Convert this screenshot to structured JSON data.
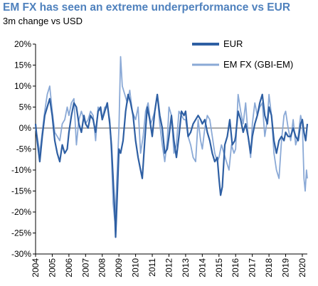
{
  "title": "EM FX has seen an extreme underperformance vs EUR",
  "subtitle": "3m change vs USD",
  "colors": {
    "eur": "#2e5fa3",
    "emfx": "#8aa9d6",
    "title": "#4f81bd",
    "zero_line": "#555555"
  },
  "chart_data": {
    "type": "line",
    "title": "EM FX has seen an extreme underperformance vs EUR",
    "subtitle": "3m change vs USD",
    "xlabel": "",
    "ylabel": "",
    "xlim": [
      2004,
      2020.3
    ],
    "ylim": [
      -30,
      20
    ],
    "y_ticks": [
      20,
      15,
      10,
      5,
      0,
      -5,
      -10,
      -15,
      -20,
      -25,
      -30
    ],
    "y_tick_labels": [
      "20%",
      "15%",
      "10%",
      "5%",
      "0%",
      "-5%",
      "-10%",
      "-15%",
      "-20%",
      "-25%",
      "-30%"
    ],
    "x_ticks": [
      "2004",
      "2005",
      "2006",
      "2007",
      "2008",
      "2009",
      "2010",
      "2011",
      "2012",
      "2013",
      "2014",
      "2015",
      "2016",
      "2017",
      "2018",
      "2019",
      "2020"
    ],
    "grid": false,
    "legend_position": "top-right",
    "series": [
      {
        "name": "EUR",
        "points": [
          [
            2004.0,
            1
          ],
          [
            2004.1,
            -3
          ],
          [
            2004.25,
            -8
          ],
          [
            2004.4,
            -2
          ],
          [
            2004.55,
            3
          ],
          [
            2004.7,
            5
          ],
          [
            2004.85,
            7
          ],
          [
            2005.0,
            3
          ],
          [
            2005.15,
            -3
          ],
          [
            2005.3,
            -6
          ],
          [
            2005.45,
            -8
          ],
          [
            2005.6,
            -4
          ],
          [
            2005.75,
            -6
          ],
          [
            2005.9,
            -5
          ],
          [
            2006.0,
            -1
          ],
          [
            2006.15,
            3
          ],
          [
            2006.3,
            6
          ],
          [
            2006.45,
            5
          ],
          [
            2006.6,
            1
          ],
          [
            2006.75,
            -1
          ],
          [
            2006.9,
            3
          ],
          [
            2007.0,
            1
          ],
          [
            2007.15,
            0
          ],
          [
            2007.3,
            3
          ],
          [
            2007.45,
            2
          ],
          [
            2007.6,
            -1
          ],
          [
            2007.75,
            4
          ],
          [
            2007.9,
            5
          ],
          [
            2008.0,
            2
          ],
          [
            2008.15,
            4
          ],
          [
            2008.3,
            6
          ],
          [
            2008.45,
            1
          ],
          [
            2008.55,
            -4
          ],
          [
            2008.65,
            -12
          ],
          [
            2008.75,
            -20
          ],
          [
            2008.8,
            -26
          ],
          [
            2008.9,
            -16
          ],
          [
            2009.0,
            -5
          ],
          [
            2009.1,
            -6
          ],
          [
            2009.25,
            -3
          ],
          [
            2009.4,
            4
          ],
          [
            2009.55,
            8
          ],
          [
            2009.7,
            6
          ],
          [
            2009.85,
            3
          ],
          [
            2010.0,
            -3
          ],
          [
            2010.15,
            -7
          ],
          [
            2010.3,
            -10
          ],
          [
            2010.4,
            -12
          ],
          [
            2010.55,
            -3
          ],
          [
            2010.7,
            5
          ],
          [
            2010.85,
            2
          ],
          [
            2011.0,
            -2
          ],
          [
            2011.15,
            4
          ],
          [
            2011.3,
            8
          ],
          [
            2011.45,
            3
          ],
          [
            2011.6,
            0
          ],
          [
            2011.75,
            -6
          ],
          [
            2011.9,
            -5
          ],
          [
            2012.0,
            -2
          ],
          [
            2012.15,
            3
          ],
          [
            2012.3,
            -3
          ],
          [
            2012.45,
            -7
          ],
          [
            2012.6,
            -2
          ],
          [
            2012.75,
            4
          ],
          [
            2012.9,
            3
          ],
          [
            2013.0,
            4
          ],
          [
            2013.15,
            -2
          ],
          [
            2013.3,
            -1
          ],
          [
            2013.45,
            1
          ],
          [
            2013.6,
            2
          ],
          [
            2013.75,
            3
          ],
          [
            2013.9,
            2
          ],
          [
            2014.0,
            1
          ],
          [
            2014.15,
            2
          ],
          [
            2014.3,
            -1
          ],
          [
            2014.45,
            -3
          ],
          [
            2014.6,
            -6
          ],
          [
            2014.75,
            -8
          ],
          [
            2014.9,
            -7
          ],
          [
            2015.0,
            -12
          ],
          [
            2015.1,
            -16
          ],
          [
            2015.2,
            -14
          ],
          [
            2015.35,
            -4
          ],
          [
            2015.5,
            -2
          ],
          [
            2015.65,
            2
          ],
          [
            2015.8,
            -4
          ],
          [
            2015.95,
            -3
          ],
          [
            2016.0,
            -2
          ],
          [
            2016.15,
            4
          ],
          [
            2016.3,
            2
          ],
          [
            2016.45,
            -1
          ],
          [
            2016.6,
            1
          ],
          [
            2016.75,
            -2
          ],
          [
            2016.9,
            -6
          ],
          [
            2017.0,
            -2
          ],
          [
            2017.15,
            1
          ],
          [
            2017.3,
            3
          ],
          [
            2017.45,
            6
          ],
          [
            2017.6,
            8
          ],
          [
            2017.75,
            3
          ],
          [
            2017.9,
            1
          ],
          [
            2018.0,
            5
          ],
          [
            2018.15,
            3
          ],
          [
            2018.3,
            -3
          ],
          [
            2018.45,
            -6
          ],
          [
            2018.6,
            -3
          ],
          [
            2018.75,
            -2
          ],
          [
            2018.9,
            -3
          ],
          [
            2019.0,
            -1
          ],
          [
            2019.15,
            -2
          ],
          [
            2019.3,
            -2
          ],
          [
            2019.45,
            0
          ],
          [
            2019.6,
            -2
          ],
          [
            2019.75,
            -3
          ],
          [
            2019.9,
            1
          ],
          [
            2020.0,
            2
          ],
          [
            2020.1,
            -1
          ],
          [
            2020.2,
            -3
          ],
          [
            2020.3,
            1
          ]
        ]
      },
      {
        "name": "EM FX (GBI-EM)",
        "points": [
          [
            2004.0,
            0
          ],
          [
            2004.1,
            -2
          ],
          [
            2004.25,
            -6
          ],
          [
            2004.4,
            -1
          ],
          [
            2004.55,
            4
          ],
          [
            2004.7,
            8
          ],
          [
            2004.85,
            10
          ],
          [
            2005.0,
            4
          ],
          [
            2005.15,
            -1
          ],
          [
            2005.3,
            -2
          ],
          [
            2005.45,
            -3
          ],
          [
            2005.6,
            1
          ],
          [
            2005.75,
            2
          ],
          [
            2005.9,
            5
          ],
          [
            2006.0,
            3
          ],
          [
            2006.15,
            6
          ],
          [
            2006.3,
            7
          ],
          [
            2006.45,
            -4
          ],
          [
            2006.6,
            2
          ],
          [
            2006.75,
            4
          ],
          [
            2006.9,
            2
          ],
          [
            2007.0,
            1
          ],
          [
            2007.15,
            2
          ],
          [
            2007.3,
            4
          ],
          [
            2007.45,
            3
          ],
          [
            2007.6,
            -3
          ],
          [
            2007.75,
            5
          ],
          [
            2007.9,
            4
          ],
          [
            2008.0,
            2
          ],
          [
            2008.15,
            5
          ],
          [
            2008.3,
            5
          ],
          [
            2008.45,
            2
          ],
          [
            2008.55,
            -6
          ],
          [
            2008.65,
            -18
          ],
          [
            2008.75,
            -22
          ],
          [
            2008.8,
            -19
          ],
          [
            2008.9,
            -10
          ],
          [
            2009.0,
            0
          ],
          [
            2009.1,
            17
          ],
          [
            2009.2,
            10
          ],
          [
            2009.35,
            8
          ],
          [
            2009.5,
            6
          ],
          [
            2009.65,
            9
          ],
          [
            2009.8,
            4
          ],
          [
            2010.0,
            2
          ],
          [
            2010.15,
            5
          ],
          [
            2010.3,
            -6
          ],
          [
            2010.45,
            -2
          ],
          [
            2010.6,
            4
          ],
          [
            2010.75,
            6
          ],
          [
            2010.9,
            1
          ],
          [
            2011.0,
            2
          ],
          [
            2011.15,
            4
          ],
          [
            2011.3,
            8
          ],
          [
            2011.45,
            1
          ],
          [
            2011.6,
            -4
          ],
          [
            2011.75,
            -8
          ],
          [
            2011.9,
            -3
          ],
          [
            2012.0,
            5
          ],
          [
            2012.15,
            3
          ],
          [
            2012.3,
            -6
          ],
          [
            2012.45,
            -4
          ],
          [
            2012.6,
            4
          ],
          [
            2012.75,
            3
          ],
          [
            2012.9,
            2
          ],
          [
            2013.0,
            2
          ],
          [
            2013.15,
            -2
          ],
          [
            2013.3,
            -4
          ],
          [
            2013.45,
            -7
          ],
          [
            2013.6,
            -8
          ],
          [
            2013.75,
            2
          ],
          [
            2013.9,
            -3
          ],
          [
            2014.0,
            -5
          ],
          [
            2014.15,
            0
          ],
          [
            2014.3,
            3
          ],
          [
            2014.45,
            2
          ],
          [
            2014.6,
            -2
          ],
          [
            2014.75,
            -6
          ],
          [
            2014.9,
            -8
          ],
          [
            2015.0,
            -7
          ],
          [
            2015.15,
            -4
          ],
          [
            2015.3,
            -6
          ],
          [
            2015.45,
            -8
          ],
          [
            2015.6,
            -10
          ],
          [
            2015.75,
            -4
          ],
          [
            2015.9,
            -6
          ],
          [
            2016.0,
            -5
          ],
          [
            2016.15,
            8
          ],
          [
            2016.3,
            4
          ],
          [
            2016.45,
            1
          ],
          [
            2016.6,
            6
          ],
          [
            2016.75,
            -2
          ],
          [
            2016.9,
            -7
          ],
          [
            2017.0,
            1
          ],
          [
            2017.15,
            6
          ],
          [
            2017.3,
            3
          ],
          [
            2017.45,
            5
          ],
          [
            2017.6,
            6
          ],
          [
            2017.75,
            -2
          ],
          [
            2017.9,
            2
          ],
          [
            2018.0,
            8
          ],
          [
            2018.15,
            3
          ],
          [
            2018.3,
            -6
          ],
          [
            2018.45,
            -10
          ],
          [
            2018.6,
            -12
          ],
          [
            2018.75,
            -3
          ],
          [
            2018.9,
            3
          ],
          [
            2019.0,
            4
          ],
          [
            2019.15,
            0
          ],
          [
            2019.3,
            -3
          ],
          [
            2019.45,
            2
          ],
          [
            2019.6,
            -4
          ],
          [
            2019.75,
            -2
          ],
          [
            2019.9,
            3
          ],
          [
            2020.0,
            1
          ],
          [
            2020.1,
            -12
          ],
          [
            2020.17,
            -15
          ],
          [
            2020.25,
            -10
          ],
          [
            2020.3,
            -12
          ]
        ]
      }
    ]
  }
}
